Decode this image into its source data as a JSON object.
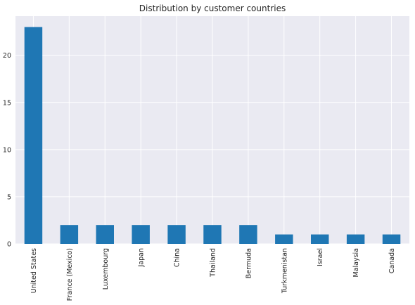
{
  "chart_data": {
    "type": "bar",
    "title": "Distribution by customer countries",
    "xlabel": "",
    "ylabel": "",
    "categories": [
      "United States",
      "France (Mexico)",
      "Luxembourg",
      "Japan",
      "China",
      "Thailand",
      "Bermuda",
      "Turkmenistan",
      "Israel",
      "Malaysia",
      "Canada"
    ],
    "values": [
      23,
      2,
      2,
      2,
      2,
      2,
      2,
      1,
      1,
      1,
      1
    ],
    "yticks": [
      0,
      5,
      10,
      15,
      20
    ],
    "ylim": [
      0,
      24.15
    ],
    "grid": true,
    "legend": "none",
    "colors": {
      "bar": "#1f77b4",
      "plot_background": "#eaeaf2",
      "grid": "#ffffff",
      "text": "#262626"
    }
  }
}
